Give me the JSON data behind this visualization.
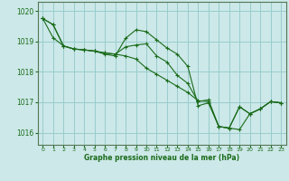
{
  "xlabel": "Graphe pression niveau de la mer (hPa)",
  "bg_color": "#cce8e8",
  "grid_color": "#99cccc",
  "line_color": "#1a6b1a",
  "marker_color": "#1a6b1a",
  "ylim": [
    1015.6,
    1020.3
  ],
  "xlim": [
    -0.5,
    23.5
  ],
  "yticks": [
    1016,
    1017,
    1018,
    1019,
    1020
  ],
  "xticks": [
    0,
    1,
    2,
    3,
    4,
    5,
    6,
    7,
    8,
    9,
    10,
    11,
    12,
    13,
    14,
    15,
    16,
    17,
    18,
    19,
    20,
    21,
    22,
    23
  ],
  "series": [
    [
      1019.75,
      1019.55,
      1018.85,
      1018.75,
      1018.72,
      1018.68,
      1018.62,
      1018.58,
      1018.52,
      1018.42,
      1018.12,
      1017.92,
      1017.72,
      1017.52,
      1017.32,
      1017.05,
      1017.02,
      1016.2,
      1016.15,
      1016.1,
      1016.62,
      1016.78,
      1017.02,
      1016.98
    ],
    [
      1019.75,
      1019.55,
      1018.85,
      1018.75,
      1018.72,
      1018.68,
      1018.58,
      1018.52,
      1019.1,
      1019.38,
      1019.32,
      1019.05,
      1018.78,
      1018.58,
      1018.18,
      1016.88,
      1016.98,
      1016.2,
      1016.15,
      1016.85,
      1016.62,
      1016.78,
      1017.02,
      1016.98
    ],
    [
      1019.75,
      1019.12,
      1018.85,
      1018.75,
      1018.72,
      1018.68,
      1018.62,
      1018.58,
      1018.82,
      1018.88,
      1018.92,
      1018.52,
      1018.32,
      1017.88,
      1017.62,
      1017.02,
      1017.08,
      1016.2,
      1016.15,
      1016.85,
      1016.62,
      1016.78,
      1017.02,
      1016.98
    ]
  ]
}
